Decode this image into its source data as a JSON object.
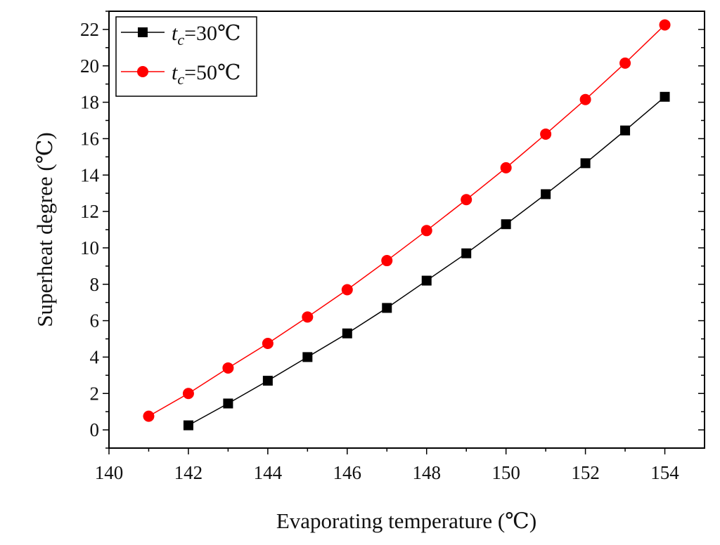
{
  "chart_data": {
    "type": "line",
    "xlabel": "Evaporating temperature (℃)",
    "ylabel": "Superheat degree (℃)",
    "xlim": [
      140,
      155
    ],
    "ylim": [
      -1,
      23
    ],
    "xticks": [
      140,
      142,
      144,
      146,
      148,
      150,
      152,
      154
    ],
    "yticks": [
      0,
      2,
      4,
      6,
      8,
      10,
      12,
      14,
      16,
      18,
      20,
      22
    ],
    "grid": false,
    "legend_position": "top-left",
    "series": [
      {
        "name": "t_c=30℃",
        "legend_var": "t",
        "legend_sub": "c",
        "legend_rest": "=30℃",
        "color": "#000000",
        "marker": "square",
        "x": [
          142,
          143,
          144,
          145,
          146,
          147,
          148,
          149,
          150,
          151,
          152,
          153,
          154
        ],
        "values": [
          0.25,
          1.45,
          2.7,
          4.0,
          5.3,
          6.7,
          8.2,
          9.7,
          11.3,
          12.95,
          14.65,
          16.45,
          18.3
        ]
      },
      {
        "name": "t_c=50℃",
        "legend_var": "t",
        "legend_sub": "c",
        "legend_rest": "=50℃",
        "color": "#ff0000",
        "marker": "circle",
        "x": [
          141,
          142,
          143,
          144,
          145,
          146,
          147,
          148,
          149,
          150,
          151,
          152,
          153,
          154
        ],
        "values": [
          0.75,
          2.0,
          3.4,
          4.75,
          6.2,
          7.7,
          9.3,
          10.95,
          12.65,
          14.4,
          16.25,
          18.15,
          20.15,
          22.25
        ]
      }
    ]
  }
}
